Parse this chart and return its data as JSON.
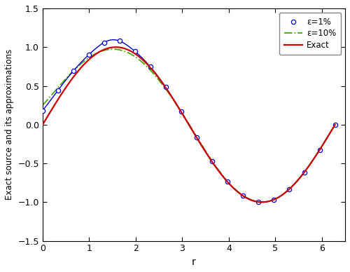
{
  "title": "",
  "xlabel": "r",
  "ylabel": "Exact source and its approximations",
  "xlim": [
    0,
    6.5
  ],
  "ylim": [
    -1.5,
    1.5
  ],
  "xticks": [
    0,
    1,
    2,
    3,
    4,
    5,
    6
  ],
  "yticks": [
    -1.5,
    -1.0,
    -0.5,
    0,
    0.5,
    1.0,
    1.5
  ],
  "exact_color": "#cc0000",
  "eps1_color": "#0000cc",
  "eps10_color": "#44aa00",
  "legend_labels": [
    "ε=1%",
    "ε=10%",
    "Exact"
  ],
  "figsize": [
    5.0,
    3.88
  ],
  "dpi": 100,
  "bg_color": "#ffffff",
  "n_markers": 20
}
